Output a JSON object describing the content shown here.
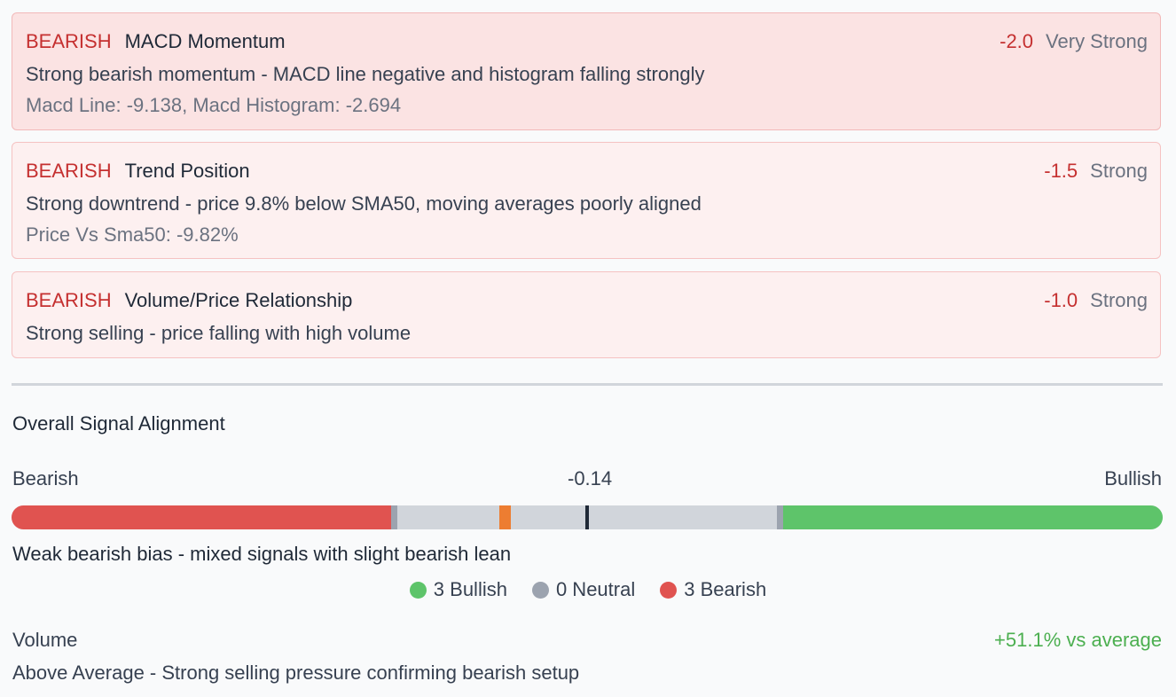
{
  "signals": [
    {
      "signal": "BEARISH",
      "title": "MACD Momentum",
      "score": "-2.0",
      "strength": "Very Strong",
      "description": "Strong bearish momentum - MACD line negative and histogram falling strongly",
      "metrics": "Macd Line: -9.138, Macd Histogram: -2.694"
    },
    {
      "signal": "BEARISH",
      "title": "Trend Position",
      "score": "-1.5",
      "strength": "Strong",
      "description": "Strong downtrend - price 9.8% below SMA50, moving averages poorly aligned",
      "metrics": "Price Vs Sma50: -9.82%"
    },
    {
      "signal": "BEARISH",
      "title": "Volume/Price Relationship",
      "score": "-1.0",
      "strength": "Strong",
      "description": "Strong selling - price falling with high volume"
    }
  ],
  "alignment": {
    "heading": "Overall Signal Alignment",
    "left_label": "Bearish",
    "right_label": "Bullish",
    "value": "-0.14",
    "summary": "Weak bearish bias - mixed signals with slight bearish lean",
    "legend": {
      "bullish": "3 Bullish",
      "neutral": "0 Neutral",
      "bearish": "3 Bearish"
    },
    "colors": {
      "bullish": "#5ec46a",
      "neutral": "#9ca3af",
      "bearish": "#e05350",
      "marker": "#ed7d31"
    }
  },
  "volume": {
    "label": "Volume",
    "change": "+51.1% vs average",
    "description": "Above Average - Strong selling pressure confirming bearish setup"
  }
}
